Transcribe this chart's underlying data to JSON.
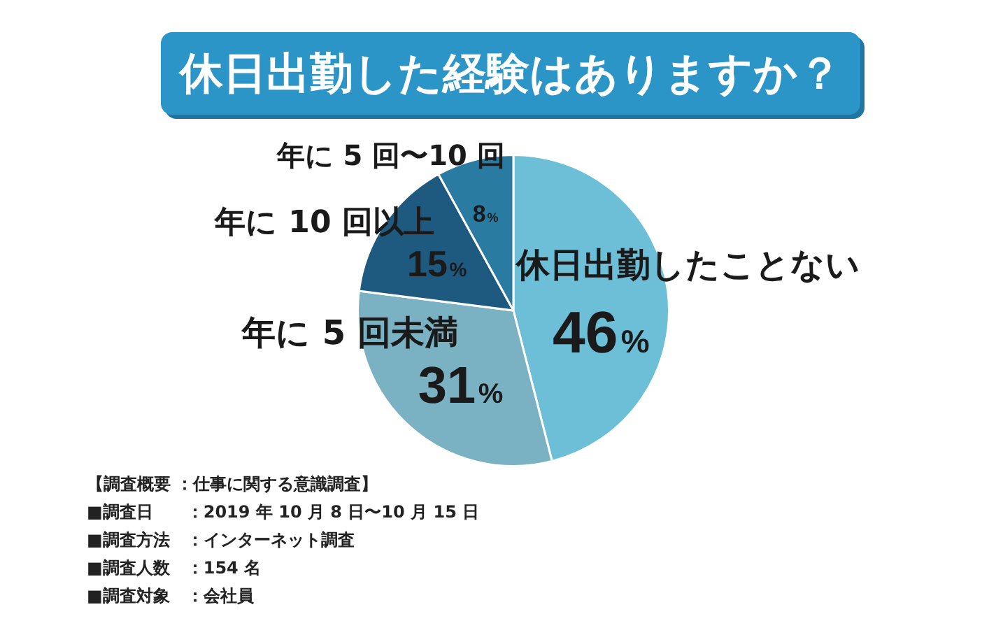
{
  "chart_data": {
    "type": "pie",
    "title": "休日出勤した経験はありますか？",
    "categories": [
      "休日出勤したことない",
      "年に 5 回未満",
      "年に 10 回以上",
      "年に 5 回〜10 回"
    ],
    "values": [
      46,
      31,
      15,
      8
    ],
    "colors": [
      "#6dbfd7",
      "#7ab2c3",
      "#1e5a80",
      "#2a7ba1"
    ],
    "value_labels": [
      "46%",
      "31%",
      "15%",
      "8%"
    ],
    "annotations": [
      "【調査概要 ：仕事に関する意識調査】",
      "■調査日　　：2019 年 10 月 8 日〜10 月 15 日",
      "■調査方法　：インターネット調査",
      "■調査人数　：154 名",
      "■調査対象　：会社員"
    ]
  }
}
